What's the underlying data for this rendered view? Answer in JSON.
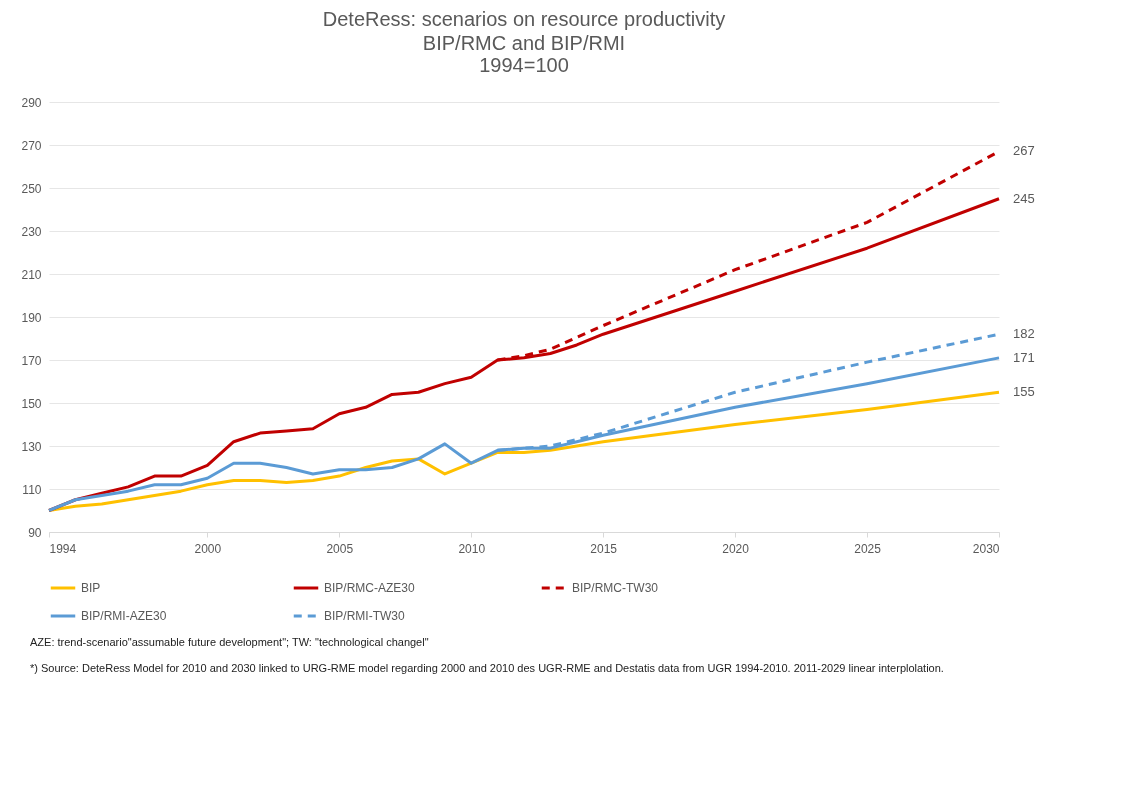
{
  "chart_data": {
    "type": "line",
    "title": "DeteRess: scenarios on resource productivity",
    "subtitle": "BIP/RMC and BIP/RMI\n1994=100",
    "xlim": [
      1994,
      2030
    ],
    "xticks": [
      1994,
      2000,
      2005,
      2010,
      2015,
      2020,
      2025,
      2030
    ],
    "ylim": [
      90,
      290
    ],
    "yticks": [
      90,
      110,
      130,
      150,
      170,
      190,
      210,
      230,
      250,
      270,
      290
    ],
    "grid": "y",
    "legend": "bottom",
    "line_style": "solid",
    "series": [
      {
        "name": "BIP",
        "color": "#ffc000",
        "x": [
          1994,
          1995,
          1996,
          1997,
          1998,
          1999,
          2000,
          2001,
          2002,
          2003,
          2004,
          2005,
          2006,
          2007,
          2008,
          2009,
          2010,
          2011,
          2012,
          2013,
          2014,
          2015,
          2020,
          2025,
          2030
        ],
        "values": [
          100,
          102,
          103,
          105,
          107,
          109,
          112,
          114,
          114,
          113,
          114,
          116,
          120,
          123,
          124,
          117,
          122,
          127,
          127,
          128,
          130,
          132,
          140,
          147,
          155
        ],
        "value_labels": [
          null,
          null,
          null,
          null,
          null,
          null,
          null,
          null,
          null,
          null,
          null,
          null,
          null,
          null,
          null,
          null,
          null,
          null,
          null,
          null,
          null,
          null,
          null,
          null,
          "155"
        ]
      },
      {
        "name": "BIP/RMC-AZE30",
        "color": "#c00000",
        "x": [
          1994,
          1995,
          1996,
          1997,
          1998,
          1999,
          2000,
          2001,
          2002,
          2003,
          2004,
          2005,
          2006,
          2007,
          2008,
          2009,
          2010,
          2011,
          2012,
          2013,
          2014,
          2015,
          2020,
          2025,
          2030
        ],
        "values": [
          100,
          105,
          108,
          111,
          116,
          116,
          121,
          132,
          136,
          137,
          138,
          145,
          148,
          154,
          155,
          159,
          162,
          170,
          171,
          173,
          177,
          182,
          202,
          222,
          245
        ],
        "value_labels": [
          null,
          null,
          null,
          null,
          null,
          null,
          null,
          null,
          null,
          null,
          null,
          null,
          null,
          null,
          null,
          null,
          null,
          null,
          null,
          null,
          null,
          null,
          null,
          null,
          "245"
        ]
      },
      {
        "name": "BIP/RMC-TW30",
        "color": "#c00000",
        "line_style": "dashed",
        "x": [
          2011,
          2012,
          2013,
          2015,
          2020,
          2025,
          2030
        ],
        "values": [
          170,
          172,
          175,
          186,
          212,
          234,
          267
        ],
        "value_labels": [
          null,
          null,
          null,
          null,
          null,
          null,
          "267"
        ]
      },
      {
        "name": "BIP/RMI-AZE30",
        "color": "#5b9bd5",
        "x": [
          1994,
          1995,
          1996,
          1997,
          1998,
          1999,
          2000,
          2001,
          2002,
          2003,
          2004,
          2005,
          2006,
          2007,
          2008,
          2009,
          2010,
          2011,
          2012,
          2013,
          2014,
          2015,
          2020,
          2025,
          2030
        ],
        "values": [
          100,
          105,
          107,
          109,
          112,
          112,
          115,
          122,
          122,
          120,
          117,
          119,
          119,
          120,
          124,
          131,
          122,
          128,
          129,
          129,
          132,
          135,
          148,
          159,
          171
        ],
        "value_labels": [
          null,
          null,
          null,
          null,
          null,
          null,
          null,
          null,
          null,
          null,
          null,
          null,
          null,
          null,
          null,
          null,
          null,
          null,
          null,
          null,
          null,
          null,
          null,
          null,
          "171"
        ]
      },
      {
        "name": "BIP/RMI-TW30",
        "color": "#5b9bd5",
        "line_style": "dashed",
        "x": [
          2011,
          2012,
          2013,
          2015,
          2020,
          2025,
          2030
        ],
        "values": [
          128,
          129,
          130,
          136,
          155,
          169,
          182
        ],
        "value_labels": [
          null,
          null,
          null,
          null,
          null,
          null,
          "182"
        ]
      }
    ],
    "annotations": [
      "AZE: trend-scenario\"assumable future development\"; TW: \"technological changel\"",
      "*) Source: DeteRess Model for 2010 and 2030 linked to URG-RME model regarding 2000 and 2010 des UGR-RME and Destatis data from  UGR 1994-2010. 2011-2029 linear interplolation."
    ]
  }
}
